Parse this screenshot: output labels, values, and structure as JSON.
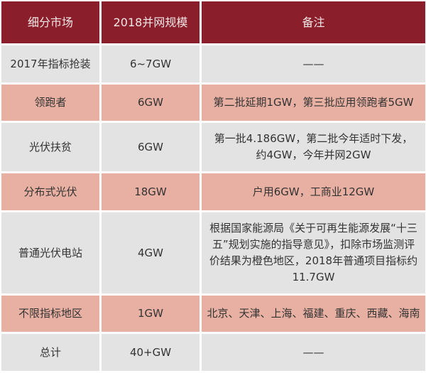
{
  "colors": {
    "header": "#8a1f2b",
    "row_gray": "#e3e3e3",
    "row_pink": "#e8b0a2"
  },
  "headers": [
    "细分市场",
    "2018并网规模",
    "备注"
  ],
  "rows": [
    {
      "market": "2017年指标抢装",
      "scale": "6~7GW",
      "note": "——",
      "style": "gray"
    },
    {
      "market": "领跑者",
      "scale": "6GW",
      "note": "第二批延期1GW，第三批应用领跑者5GW",
      "style": "pink"
    },
    {
      "market": "光伏扶贫",
      "scale": "6GW",
      "note": "第一批4.186GW，第二批今年适时下发，约4GW，今年并网2GW",
      "style": "gray"
    },
    {
      "market": "分布式光伏",
      "scale": "18GW",
      "note": "户用6GW，工商业12GW",
      "style": "pink"
    },
    {
      "market": "普通光伏电站",
      "scale": "4GW",
      "note": "根据国家能源局《关于可再生能源发展“十三五”规划实施的指导意见》，扣除市场监测评价结果为橙色地区，2018年普通项目指标约11.7GW",
      "style": "gray"
    },
    {
      "market": "不限指标地区",
      "scale": "1GW",
      "note": "北京、天津、上海、福建、重庆、西藏、海南",
      "style": "pink"
    },
    {
      "market": "总计",
      "scale": "40+GW",
      "note": "——",
      "style": "gray"
    }
  ]
}
